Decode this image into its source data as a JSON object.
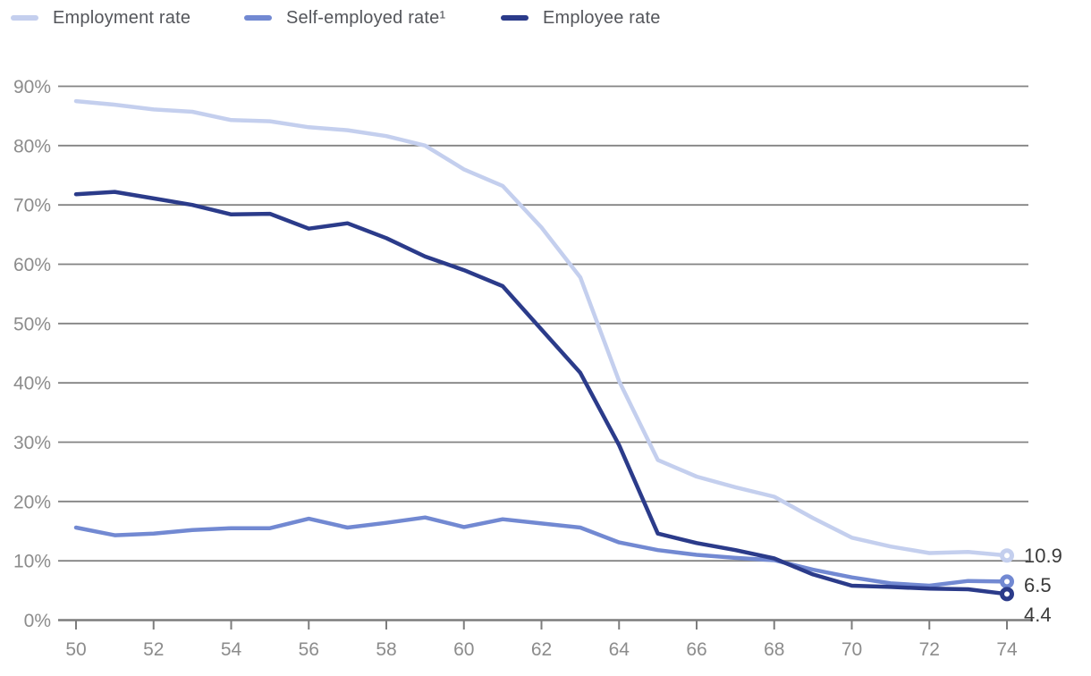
{
  "legend": {
    "items": [
      {
        "label": "Employment rate",
        "color": "#c4cfee"
      },
      {
        "label": "Self-employed rate¹",
        "color": "#7289d2"
      },
      {
        "label": "Employee rate",
        "color": "#2b3b8a"
      }
    ]
  },
  "chart_data": {
    "type": "line",
    "title": "",
    "xlabel": "",
    "ylabel": "",
    "x": [
      50,
      51,
      52,
      53,
      54,
      55,
      56,
      57,
      58,
      59,
      60,
      61,
      62,
      63,
      64,
      65,
      66,
      67,
      68,
      69,
      70,
      71,
      72,
      73,
      74
    ],
    "series": [
      {
        "name": "Employment rate",
        "color": "#c4cfee",
        "end_label": "10.9",
        "values": [
          87.5,
          86.9,
          86.1,
          85.7,
          84.3,
          84.1,
          83.1,
          82.6,
          81.6,
          80.0,
          76.0,
          73.2,
          66.2,
          57.8,
          40.3,
          27.0,
          24.2,
          22.4,
          20.8,
          17.2,
          13.9,
          12.4,
          11.3,
          11.5,
          10.9
        ]
      },
      {
        "name": "Self-employed rate¹",
        "color": "#7289d2",
        "end_label": "6.5",
        "values": [
          15.6,
          14.3,
          14.6,
          15.2,
          15.5,
          15.5,
          17.1,
          15.6,
          16.4,
          17.3,
          15.7,
          17.0,
          16.3,
          15.6,
          13.1,
          11.8,
          11.0,
          10.5,
          10.1,
          8.5,
          7.2,
          6.2,
          5.8,
          6.6,
          6.5
        ]
      },
      {
        "name": "Employee rate",
        "color": "#2b3b8a",
        "end_label": "4.4",
        "values": [
          71.8,
          72.2,
          71.1,
          70.0,
          68.4,
          68.5,
          66.0,
          66.9,
          64.4,
          61.3,
          59.0,
          56.3,
          49.0,
          41.7,
          29.5,
          14.6,
          13.0,
          11.8,
          10.4,
          7.7,
          5.8,
          5.6,
          5.3,
          5.2,
          4.4
        ]
      }
    ],
    "ylim": [
      0,
      90
    ],
    "ytick_step": 10,
    "ytick_suffix": "%",
    "xticks": [
      50,
      52,
      54,
      56,
      58,
      60,
      62,
      64,
      66,
      68,
      70,
      72,
      74
    ],
    "grid": true,
    "legend_position": "top-left",
    "marker_last_point": "open-circle"
  },
  "colors": {
    "grid": "#838383",
    "axis": "#7d7d7d",
    "tick_label": "#8c8c8c",
    "value_label": "#3a3a3a",
    "background": "#ffffff"
  }
}
